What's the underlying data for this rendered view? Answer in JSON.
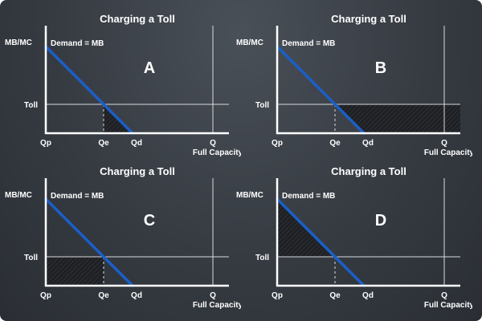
{
  "chart_data": [
    {
      "type": "line",
      "title": "Charging a Toll",
      "panel_letter": "A",
      "y_axis_label": "MB/MC",
      "curve_label": "Demand = MB",
      "toll_label": "Toll",
      "x_ticks": [
        "Qp",
        "Qe",
        "Qd",
        "Q"
      ],
      "full_capacity_label": "Full Capacity",
      "shaded_region": "triangle-below-toll-right-of-Qe"
    },
    {
      "type": "line",
      "title": "Charging a Toll",
      "panel_letter": "B",
      "y_axis_label": "MB/MC",
      "curve_label": "Demand = MB",
      "toll_label": "Toll",
      "x_ticks": [
        "Qp",
        "Qe",
        "Qd",
        "Q"
      ],
      "full_capacity_label": "Full Capacity",
      "shaded_region": "band-above-toll-right-of-Qe-to-capacity"
    },
    {
      "type": "line",
      "title": "Charging a Toll",
      "panel_letter": "C",
      "y_axis_label": "MB/MC",
      "curve_label": "Demand = MB",
      "toll_label": "Toll",
      "x_ticks": [
        "Qp",
        "Qe",
        "Qd",
        "Q"
      ],
      "full_capacity_label": "Full Capacity",
      "shaded_region": "rectangle-below-toll-left-of-Qe"
    },
    {
      "type": "line",
      "title": "Charging a Toll",
      "panel_letter": "D",
      "y_axis_label": "MB/MC",
      "curve_label": "Demand = MB",
      "toll_label": "Toll",
      "x_ticks": [
        "Qp",
        "Qe",
        "Qd",
        "Q"
      ],
      "full_capacity_label": "Full Capacity",
      "shaded_region": "triangle-above-toll-left-of-Qe"
    }
  ],
  "colors": {
    "demand_line": "#1a5fc8",
    "axis": "#ffffff",
    "guide_line": "#d8dadc",
    "shade": "#1e2024"
  }
}
